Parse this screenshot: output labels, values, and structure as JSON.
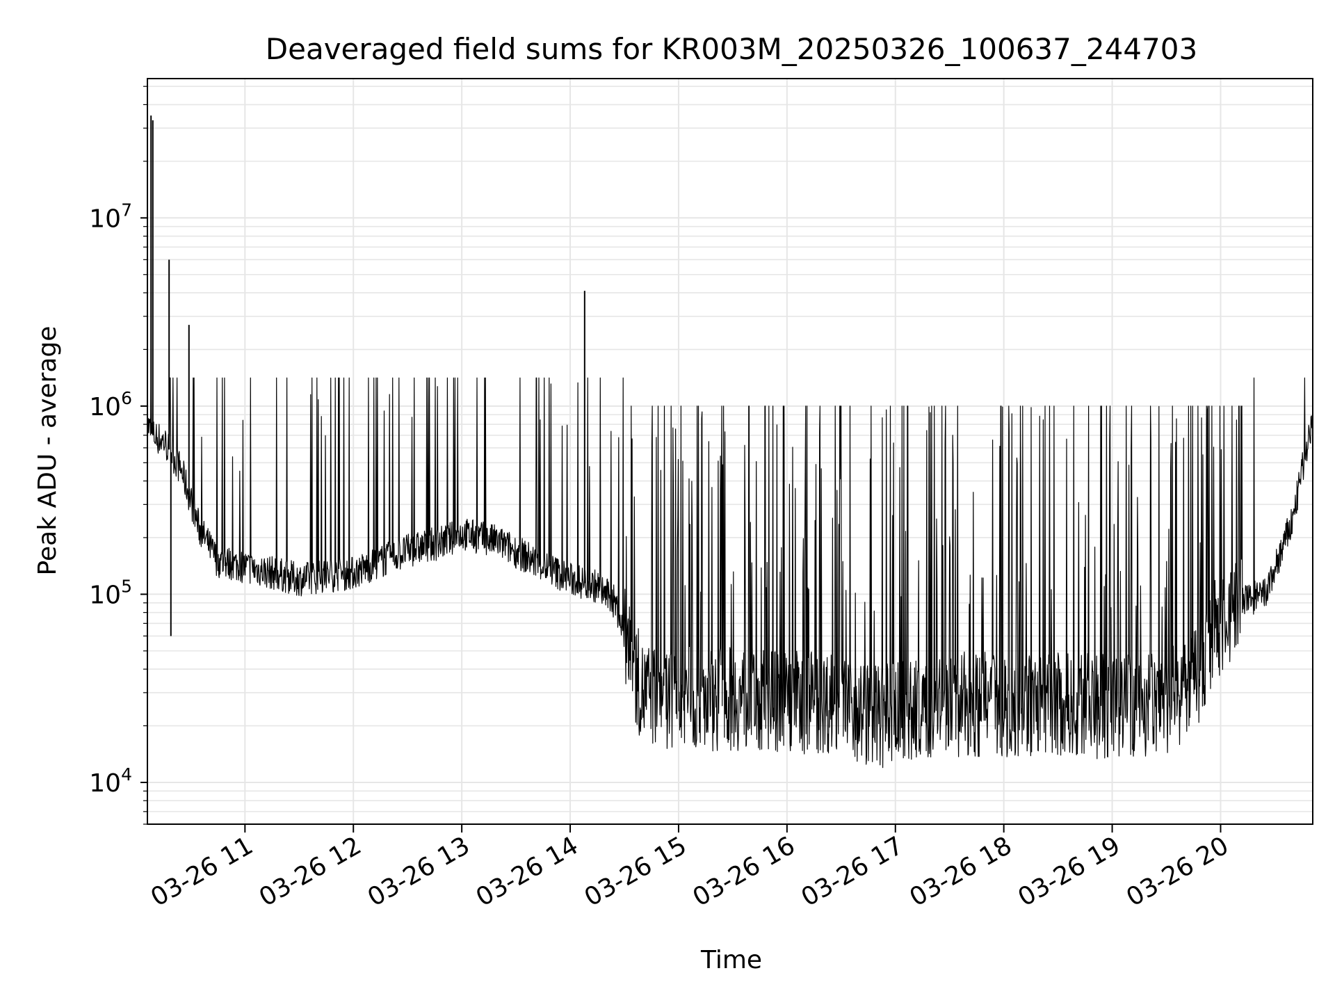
{
  "chart_data": {
    "type": "line",
    "title": "Deaveraged field sums for KR003M_20250326_100637_244703",
    "xlabel": "Time",
    "ylabel": "Peak ADU - average",
    "xscale": "time",
    "yscale": "log",
    "xlim": [
      "03-26 10:06",
      "03-26 20:51"
    ],
    "ylim": [
      6000,
      55000000
    ],
    "grid": true,
    "line_color": "#000000",
    "grid_color": "#e6e6e6",
    "x_ticks": [
      "03-26 11",
      "03-26 12",
      "03-26 13",
      "03-26 14",
      "03-26 15",
      "03-26 16",
      "03-26 17",
      "03-26 18",
      "03-26 19",
      "03-26 20"
    ],
    "y_ticks": [
      {
        "base": "10",
        "exp": "4",
        "value": 10000
      },
      {
        "base": "10",
        "exp": "5",
        "value": 100000
      },
      {
        "base": "10",
        "exp": "6",
        "value": 1000000
      },
      {
        "base": "10",
        "exp": "7",
        "value": 10000000
      }
    ],
    "series": [
      {
        "name": "",
        "note_shape": "dense noisy trace; baseline values (Peak ADU - average) at selected times, with narrow upward spikes superimposed",
        "x": [
          "03-26 10:06",
          "03-26 10:09",
          "03-26 10:15",
          "03-26 10:20",
          "03-26 10:25",
          "03-26 10:35",
          "03-26 10:45",
          "03-26 11:00",
          "03-26 11:15",
          "03-26 11:30",
          "03-26 12:00",
          "03-26 12:30",
          "03-26 12:50",
          "03-26 13:00",
          "03-26 13:20",
          "03-26 13:40",
          "03-26 14:00",
          "03-26 14:15",
          "03-26 14:25",
          "03-26 14:32",
          "03-26 14:40",
          "03-26 15:00",
          "03-26 15:30",
          "03-26 16:00",
          "03-26 16:30",
          "03-26 16:50",
          "03-26 17:00",
          "03-26 17:30",
          "03-26 18:00",
          "03-26 18:30",
          "03-26 19:00",
          "03-26 19:30",
          "03-26 19:48",
          "03-26 19:55",
          "03-26 20:10",
          "03-26 20:25",
          "03-26 20:40",
          "03-26 20:51"
        ],
        "y": [
          800000,
          700000,
          650000,
          550000,
          450000,
          220000,
          150000,
          140000,
          130000,
          120000,
          130000,
          170000,
          190000,
          210000,
          190000,
          150000,
          120000,
          110000,
          90000,
          50000,
          30000,
          28000,
          28000,
          27000,
          27000,
          22000,
          23000,
          26000,
          26000,
          26000,
          25000,
          27000,
          35000,
          60000,
          90000,
          100000,
          250000,
          900000
        ]
      }
    ],
    "spikes": {
      "x": [
        "03-26 10:08",
        "03-26 10:09",
        "03-26 10:18",
        "03-26 10:29",
        "03-26 14:08",
        "03-26 10:19"
      ],
      "y": [
        35000000,
        33000000,
        6000000,
        2700000,
        4100000,
        60000
      ]
    }
  }
}
